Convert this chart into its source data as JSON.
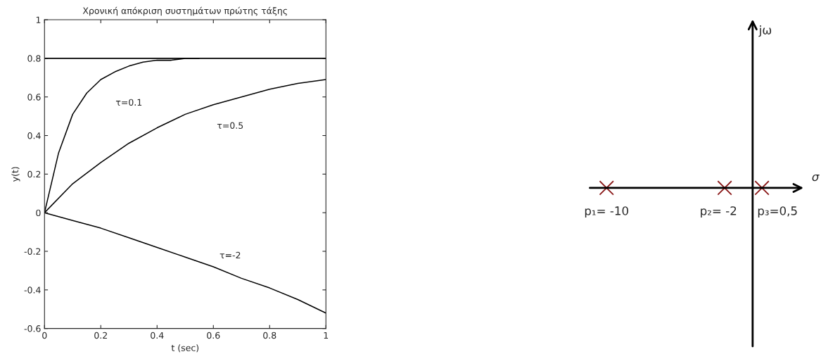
{
  "chart_data": [
    {
      "type": "line",
      "title": "Χρονική απόκριση συστημάτων πρώτης τάξης",
      "xlabel": "t (sec)",
      "ylabel": "y(t)",
      "series": [
        {
          "color": "#000000",
          "x": [
            0,
            1
          ],
          "values": [
            0.8,
            0.8
          ]
        },
        {
          "color": "#000000",
          "x": [
            0,
            0.05,
            0.1,
            0.15,
            0.2,
            0.25,
            0.3,
            0.35,
            0.4,
            0.45,
            0.5,
            0.55
          ],
          "values": [
            0,
            0.31,
            0.51,
            0.62,
            0.69,
            0.73,
            0.76,
            0.78,
            0.79,
            0.79,
            0.8,
            0.8
          ]
        },
        {
          "color": "#000000",
          "x": [
            0,
            0.1,
            0.2,
            0.3,
            0.4,
            0.5,
            0.6,
            0.7,
            0.8,
            0.9,
            1
          ],
          "values": [
            0,
            0.15,
            0.26,
            0.36,
            0.44,
            0.51,
            0.56,
            0.6,
            0.64,
            0.67,
            0.69
          ]
        },
        {
          "color": "#000000",
          "x": [
            0,
            0.1,
            0.2,
            0.3,
            0.4,
            0.5,
            0.6,
            0.7,
            0.8,
            0.9,
            1
          ],
          "values": [
            0,
            -0.04,
            -0.08,
            -0.13,
            -0.18,
            -0.23,
            -0.28,
            -0.34,
            -0.39,
            -0.45,
            -0.52
          ]
        }
      ],
      "annotations": [
        "τ=0.1",
        "τ=0.5",
        "τ=-2"
      ],
      "xlim": [
        0,
        1
      ],
      "ylim": [
        -0.6,
        1
      ],
      "xticks": [
        0,
        0.2,
        0.4,
        0.6,
        0.8,
        1
      ],
      "yticks": [
        -0.6,
        -0.4,
        -0.2,
        0,
        0.2,
        0.4,
        0.6,
        0.8,
        1
      ],
      "grid": false
    },
    {
      "type": "other",
      "annotations": [
        "jω",
        "σ",
        "p₁= -10",
        "p₂= -2",
        "p₃=0,5"
      ]
    }
  ]
}
